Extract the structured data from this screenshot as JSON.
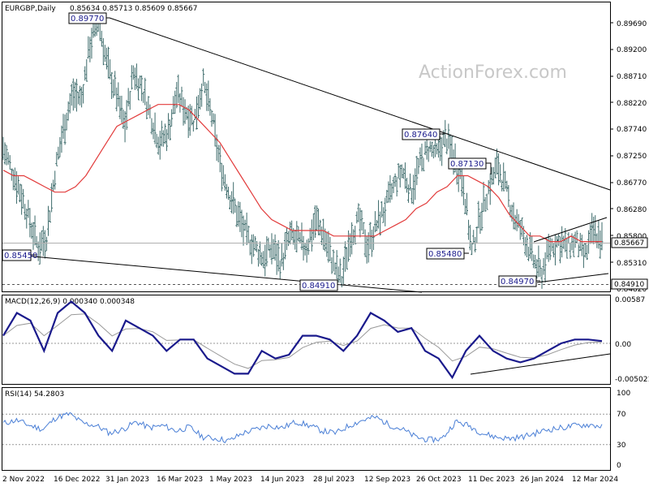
{
  "header": {
    "symbol_tf": "EURGBP,Daily",
    "ohlc": "0.85634 0.85713 0.85609 0.85667"
  },
  "watermark": "ActionForex.com",
  "price_axis": {
    "ticks": [
      "0.89690",
      "0.89200",
      "0.88710",
      "0.88220",
      "0.87740",
      "0.87250",
      "0.86770",
      "0.86280",
      "0.85800",
      "0.85310",
      "0.84820"
    ],
    "current_price": "0.85667",
    "marker_price": "0.84910"
  },
  "annotations": {
    "high_1": "0.89770",
    "high_2": "0.87640",
    "high_3": "0.87130",
    "low_1": "0.85450",
    "low_2": "0.84910",
    "low_3": "0.85480",
    "low_4": "0.84970"
  },
  "macd": {
    "label": "MACD(12,26,9) 0.000340 0.000348",
    "ticks": [
      "0.00587",
      "0.00",
      "-0.005021"
    ]
  },
  "rsi": {
    "label": "RSI(14) 54.2803",
    "ticks": [
      "100",
      "70",
      "30",
      "0"
    ]
  },
  "date_axis": {
    "labels": [
      "2 Nov 2022",
      "16 Dec 2022",
      "31 Jan 2023",
      "16 Mar 2023",
      "1 May 2023",
      "14 Jun 2023",
      "28 Jul 2023",
      "12 Sep 2023",
      "26 Oct 2023",
      "11 Dec 2023",
      "26 Jan 2024",
      "12 Mar 2024"
    ]
  },
  "colors": {
    "bars": "#3d6b6b",
    "ma": "#e23b3b",
    "macd": "#1a1a8c",
    "signal": "#999999",
    "rsi": "#4a7fd6",
    "trend": "#000000"
  },
  "chart_data": {
    "type": "ohlc",
    "title": "EURGBP,Daily",
    "dates": [
      "2 Nov 2022",
      "16 Dec 2022",
      "31 Jan 2023",
      "16 Mar 2023",
      "1 May 2023",
      "14 Jun 2023",
      "28 Jul 2023",
      "12 Sep 2023",
      "26 Oct 2023",
      "11 Dec 2023",
      "26 Jan 2024",
      "12 Mar 2024"
    ],
    "price_path": [
      0.874,
      0.87,
      0.866,
      0.861,
      0.856,
      0.858,
      0.87,
      0.878,
      0.884,
      0.883,
      0.893,
      0.897,
      0.889,
      0.884,
      0.878,
      0.888,
      0.885,
      0.88,
      0.875,
      0.877,
      0.884,
      0.881,
      0.879,
      0.886,
      0.88,
      0.871,
      0.866,
      0.862,
      0.858,
      0.856,
      0.854,
      0.856,
      0.853,
      0.858,
      0.857,
      0.856,
      0.861,
      0.858,
      0.853,
      0.85,
      0.858,
      0.861,
      0.856,
      0.86,
      0.863,
      0.867,
      0.87,
      0.866,
      0.871,
      0.874,
      0.873,
      0.876,
      0.872,
      0.868,
      0.855,
      0.862,
      0.867,
      0.871,
      0.866,
      0.861,
      0.858,
      0.854,
      0.851,
      0.856,
      0.857,
      0.856,
      0.857,
      0.854,
      0.859,
      0.857
    ],
    "ma_path": [
      0.87,
      0.869,
      0.869,
      0.868,
      0.867,
      0.866,
      0.866,
      0.867,
      0.869,
      0.872,
      0.875,
      0.878,
      0.879,
      0.88,
      0.881,
      0.882,
      0.882,
      0.882,
      0.881,
      0.879,
      0.877,
      0.875,
      0.872,
      0.869,
      0.866,
      0.863,
      0.861,
      0.86,
      0.859,
      0.859,
      0.859,
      0.859,
      0.858,
      0.858,
      0.858,
      0.858,
      0.858,
      0.859,
      0.86,
      0.861,
      0.863,
      0.864,
      0.866,
      0.867,
      0.869,
      0.869,
      0.868,
      0.867,
      0.865,
      0.862,
      0.86,
      0.858,
      0.858,
      0.857,
      0.857,
      0.858,
      0.857,
      0.857,
      0.857
    ],
    "macd_path": [
      0.001,
      0.004,
      0.003,
      -0.001,
      0.004,
      0.0055,
      0.004,
      0.001,
      -0.001,
      0.003,
      0.002,
      0.001,
      -0.001,
      0.0005,
      0.0005,
      -0.002,
      -0.003,
      -0.004,
      -0.004,
      -0.001,
      -0.002,
      -0.0015,
      0.001,
      0.001,
      0.0005,
      -0.001,
      0.001,
      0.004,
      0.003,
      0.0015,
      0.002,
      -0.001,
      -0.002,
      -0.0045,
      -0.001,
      0.001,
      -0.001,
      -0.002,
      -0.0025,
      -0.002,
      -0.001,
      0.0,
      0.0005,
      0.0005,
      0.0003
    ],
    "rsi_path": [
      58,
      62,
      55,
      50,
      66,
      70,
      58,
      55,
      45,
      50,
      60,
      52,
      55,
      48,
      53,
      40,
      38,
      35,
      45,
      50,
      55,
      52,
      60,
      55,
      48,
      45,
      55,
      62,
      66,
      56,
      50,
      40,
      36,
      38,
      60,
      55,
      45,
      40,
      38,
      40,
      45,
      50,
      52,
      55,
      56,
      54
    ],
    "axis_range": [
      0.8482,
      0.8969
    ],
    "macd_range": [
      -0.005021,
      0.00587
    ],
    "rsi_range": [
      0,
      100
    ]
  }
}
